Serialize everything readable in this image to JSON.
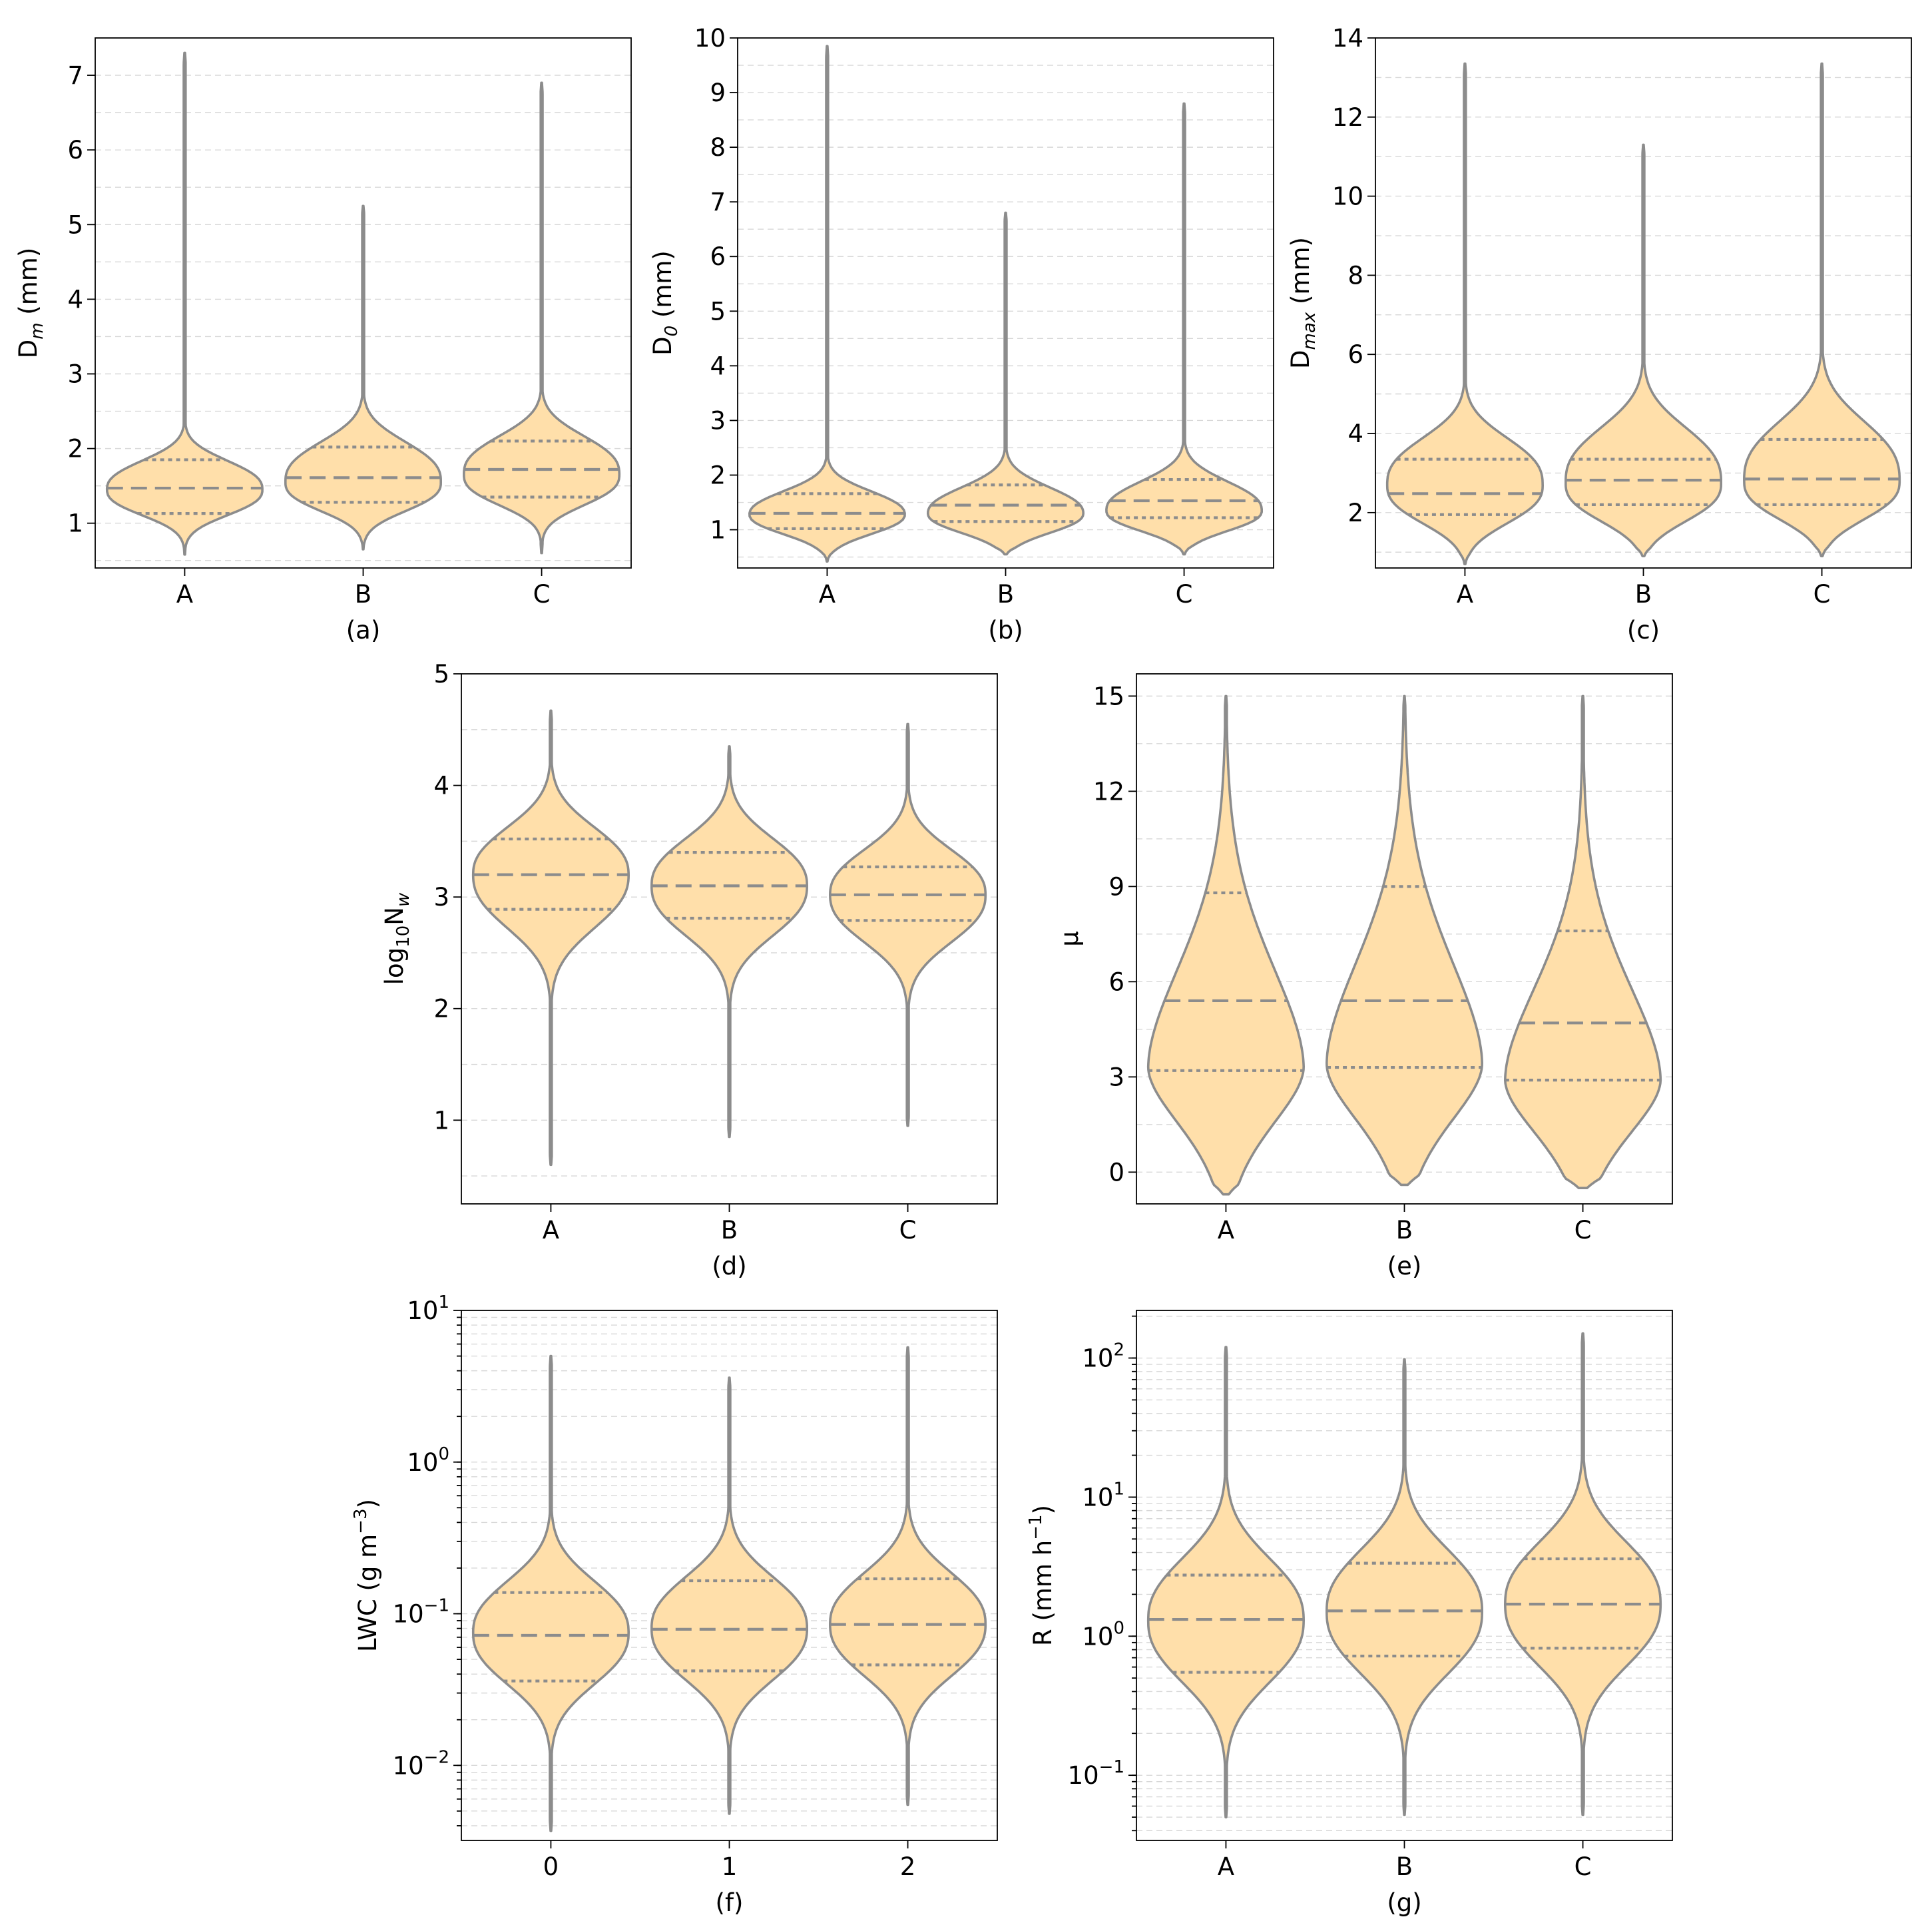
{
  "chart_data": [
    {
      "id": "a",
      "type": "violin",
      "panel_label": "(a)",
      "scale": "linear",
      "ylabel_base": "D",
      "ylabel_sub": "m",
      "ylabel_rest": " (mm)",
      "ylim": [
        0.4,
        7.5
      ],
      "yticks": [
        1,
        2,
        3,
        4,
        5,
        6,
        7
      ],
      "ytick_labels": [
        "1",
        "2",
        "3",
        "4",
        "5",
        "6",
        "7"
      ],
      "categories": [
        "A",
        "B",
        "C"
      ],
      "violins": [
        {
          "min": 0.58,
          "max": 7.3,
          "q1": 1.13,
          "median": 1.47,
          "q3": 1.85,
          "mode": 1.45,
          "mode_halfwidth": 0.4,
          "spread_low": 0.32,
          "spread_high": 0.36,
          "tail": 2.5
        },
        {
          "min": 0.65,
          "max": 5.25,
          "q1": 1.28,
          "median": 1.61,
          "q3": 2.02,
          "mode": 1.55,
          "mode_halfwidth": 0.4,
          "spread_low": 0.36,
          "spread_high": 0.5,
          "tail": 2.6
        },
        {
          "min": 0.6,
          "max": 6.9,
          "q1": 1.35,
          "median": 1.72,
          "q3": 2.1,
          "mode": 1.65,
          "mode_halfwidth": 0.38,
          "spread_low": 0.38,
          "spread_high": 0.48,
          "tail": 2.6
        }
      ]
    },
    {
      "id": "b",
      "type": "violin",
      "panel_label": "(b)",
      "scale": "linear",
      "ylabel_base": "D",
      "ylabel_sub": "0",
      "ylabel_rest": " (mm)",
      "ylim": [
        0.3,
        10.0
      ],
      "yticks": [
        1,
        2,
        3,
        4,
        5,
        6,
        7,
        8,
        9,
        10
      ],
      "ytick_labels": [
        "1",
        "2",
        "3",
        "4",
        "5",
        "6",
        "7",
        "8",
        "9",
        "10"
      ],
      "categories": [
        "A",
        "B",
        "C"
      ],
      "violins": [
        {
          "min": 0.42,
          "max": 9.85,
          "q1": 1.02,
          "median": 1.3,
          "q3": 1.66,
          "mode": 1.28,
          "mode_halfwidth": 0.4,
          "spread_low": 0.34,
          "spread_high": 0.4,
          "tail": 2.3
        },
        {
          "min": 0.55,
          "max": 6.8,
          "q1": 1.15,
          "median": 1.45,
          "q3": 1.82,
          "mode": 1.3,
          "mode_halfwidth": 0.4,
          "spread_low": 0.34,
          "spread_high": 0.45,
          "tail": 2.3
        },
        {
          "min": 0.55,
          "max": 8.8,
          "q1": 1.22,
          "median": 1.53,
          "q3": 1.92,
          "mode": 1.35,
          "mode_halfwidth": 0.4,
          "spread_low": 0.35,
          "spread_high": 0.5,
          "tail": 2.4
        }
      ]
    },
    {
      "id": "c",
      "type": "violin",
      "panel_label": "(c)",
      "scale": "linear",
      "ylabel_base": "D",
      "ylabel_sub": "max",
      "ylabel_rest": " (mm)",
      "ylim": [
        0.6,
        14.0
      ],
      "yticks": [
        2,
        4,
        6,
        8,
        10,
        12,
        14
      ],
      "ytick_labels": [
        "2",
        "4",
        "6",
        "8",
        "10",
        "12",
        "14"
      ],
      "categories": [
        "A",
        "B",
        "C"
      ],
      "violins": [
        {
          "min": 0.7,
          "max": 13.35,
          "q1": 1.95,
          "median": 2.48,
          "q3": 3.35,
          "mode": 2.7,
          "mode_halfwidth": 0.4,
          "spread_low": 0.9,
          "spread_high": 1.1,
          "tail": 2.6
        },
        {
          "min": 0.9,
          "max": 11.3,
          "q1": 2.2,
          "median": 2.82,
          "q3": 3.35,
          "mode": 2.75,
          "mode_halfwidth": 0.4,
          "spread_low": 0.9,
          "spread_high": 1.3,
          "tail": 2.6
        },
        {
          "min": 0.9,
          "max": 13.35,
          "q1": 2.2,
          "median": 2.85,
          "q3": 3.85,
          "mode": 2.8,
          "mode_halfwidth": 0.4,
          "spread_low": 0.9,
          "spread_high": 1.4,
          "tail": 2.6
        }
      ]
    },
    {
      "id": "d",
      "type": "violin",
      "panel_label": "(d)",
      "scale": "linear",
      "ylabel_base": "log",
      "ylabel_sub": "10",
      "ylabel_rest": "N",
      "ylabel_sub2": "w",
      "ylim": [
        0.25,
        5.0
      ],
      "yticks": [
        1,
        2,
        3,
        4,
        5
      ],
      "ytick_labels": [
        "1",
        "2",
        "3",
        "4",
        "5"
      ],
      "categories": [
        "A",
        "B",
        "C"
      ],
      "violins": [
        {
          "min": 0.6,
          "max": 4.67,
          "q1": 2.89,
          "median": 3.2,
          "q3": 3.52,
          "mode": 3.2,
          "mode_halfwidth": 0.4,
          "spread_low": 0.45,
          "spread_high": 0.4,
          "tail": 2.4
        },
        {
          "min": 0.85,
          "max": 4.35,
          "q1": 2.81,
          "median": 3.1,
          "q3": 3.4,
          "mode": 3.1,
          "mode_halfwidth": 0.4,
          "spread_low": 0.42,
          "spread_high": 0.4,
          "tail": 2.4
        },
        {
          "min": 0.95,
          "max": 4.55,
          "q1": 2.79,
          "median": 3.02,
          "q3": 3.27,
          "mode": 3.02,
          "mode_halfwidth": 0.4,
          "spread_low": 0.4,
          "spread_high": 0.38,
          "tail": 2.4
        }
      ]
    },
    {
      "id": "e",
      "type": "violin",
      "panel_label": "(e)",
      "scale": "linear",
      "ylabel_base": "μ",
      "ylabel_sub": "",
      "ylabel_rest": "",
      "ylim": [
        -1.0,
        15.7
      ],
      "yticks": [
        0,
        3,
        6,
        9,
        12,
        15
      ],
      "ytick_labels": [
        "0",
        "3",
        "6",
        "9",
        "12",
        "15"
      ],
      "categories": [
        "A",
        "B",
        "C"
      ],
      "violins": [
        {
          "min": -0.7,
          "max": 15.0,
          "q1": 3.2,
          "median": 5.4,
          "q3": 8.8,
          "mode": 3.3,
          "mode_halfwidth": 0.4,
          "spread_low": 1.8,
          "spread_high": 3.2,
          "tail": 1.8
        },
        {
          "min": -0.4,
          "max": 15.0,
          "q1": 3.3,
          "median": 5.4,
          "q3": 9.0,
          "mode": 3.4,
          "mode_halfwidth": 0.4,
          "spread_low": 1.8,
          "spread_high": 3.3,
          "tail": 1.8
        },
        {
          "min": -0.5,
          "max": 15.0,
          "q1": 2.9,
          "median": 4.7,
          "q3": 7.6,
          "mode": 2.9,
          "mode_halfwidth": 0.4,
          "spread_low": 1.7,
          "spread_high": 3.0,
          "tail": 1.8
        }
      ]
    },
    {
      "id": "f",
      "type": "violin",
      "panel_label": "(f)",
      "scale": "log",
      "ylabel_base": "LWC (g m",
      "ylabel_sup": "−3",
      "ylabel_rest": ")",
      "ylim": [
        0.0032,
        10
      ],
      "yticks": [
        0.01,
        0.1,
        1,
        10
      ],
      "ytick_labels": [
        "10",
        "10",
        "10",
        "10"
      ],
      "ytick_exponents": [
        "−2",
        "−1",
        "0",
        "1"
      ],
      "categories": [
        "0",
        "1",
        "2"
      ],
      "violins": [
        {
          "min": 0.0037,
          "max": 5.0,
          "q1": 0.036,
          "median": 0.072,
          "q3": 0.138,
          "mode": 0.075,
          "mode_halfwidth": 0.4,
          "spread_low": 0.32,
          "spread_high": 0.32,
          "tail": 2.4
        },
        {
          "min": 0.0048,
          "max": 3.6,
          "q1": 0.042,
          "median": 0.079,
          "q3": 0.165,
          "mode": 0.08,
          "mode_halfwidth": 0.4,
          "spread_low": 0.32,
          "spread_high": 0.32,
          "tail": 2.4
        },
        {
          "min": 0.0055,
          "max": 5.7,
          "q1": 0.046,
          "median": 0.085,
          "q3": 0.17,
          "mode": 0.085,
          "mode_halfwidth": 0.4,
          "spread_low": 0.32,
          "spread_high": 0.32,
          "tail": 2.4
        }
      ]
    },
    {
      "id": "g",
      "type": "violin",
      "panel_label": "(g)",
      "scale": "log",
      "ylabel_base": "R (mm h",
      "ylabel_sup": "−1",
      "ylabel_rest": ")",
      "ylim": [
        0.034,
        220
      ],
      "yticks": [
        0.1,
        1,
        10,
        100
      ],
      "ytick_labels": [
        "10",
        "10",
        "10",
        "10"
      ],
      "ytick_exponents": [
        "−1",
        "0",
        "1",
        "2"
      ],
      "categories": [
        "A",
        "B",
        "C"
      ],
      "violins": [
        {
          "min": 0.05,
          "max": 120,
          "q1": 0.55,
          "median": 1.32,
          "q3": 2.75,
          "mode": 1.3,
          "mode_halfwidth": 0.4,
          "spread_low": 0.42,
          "spread_high": 0.42,
          "tail": 2.4
        },
        {
          "min": 0.052,
          "max": 98,
          "q1": 0.72,
          "median": 1.52,
          "q3": 3.35,
          "mode": 1.5,
          "mode_halfwidth": 0.4,
          "spread_low": 0.42,
          "spread_high": 0.42,
          "tail": 2.4
        },
        {
          "min": 0.052,
          "max": 150,
          "q1": 0.82,
          "median": 1.7,
          "q3": 3.6,
          "mode": 1.7,
          "mode_halfwidth": 0.4,
          "spread_low": 0.42,
          "spread_high": 0.42,
          "tail": 2.4
        }
      ]
    }
  ]
}
